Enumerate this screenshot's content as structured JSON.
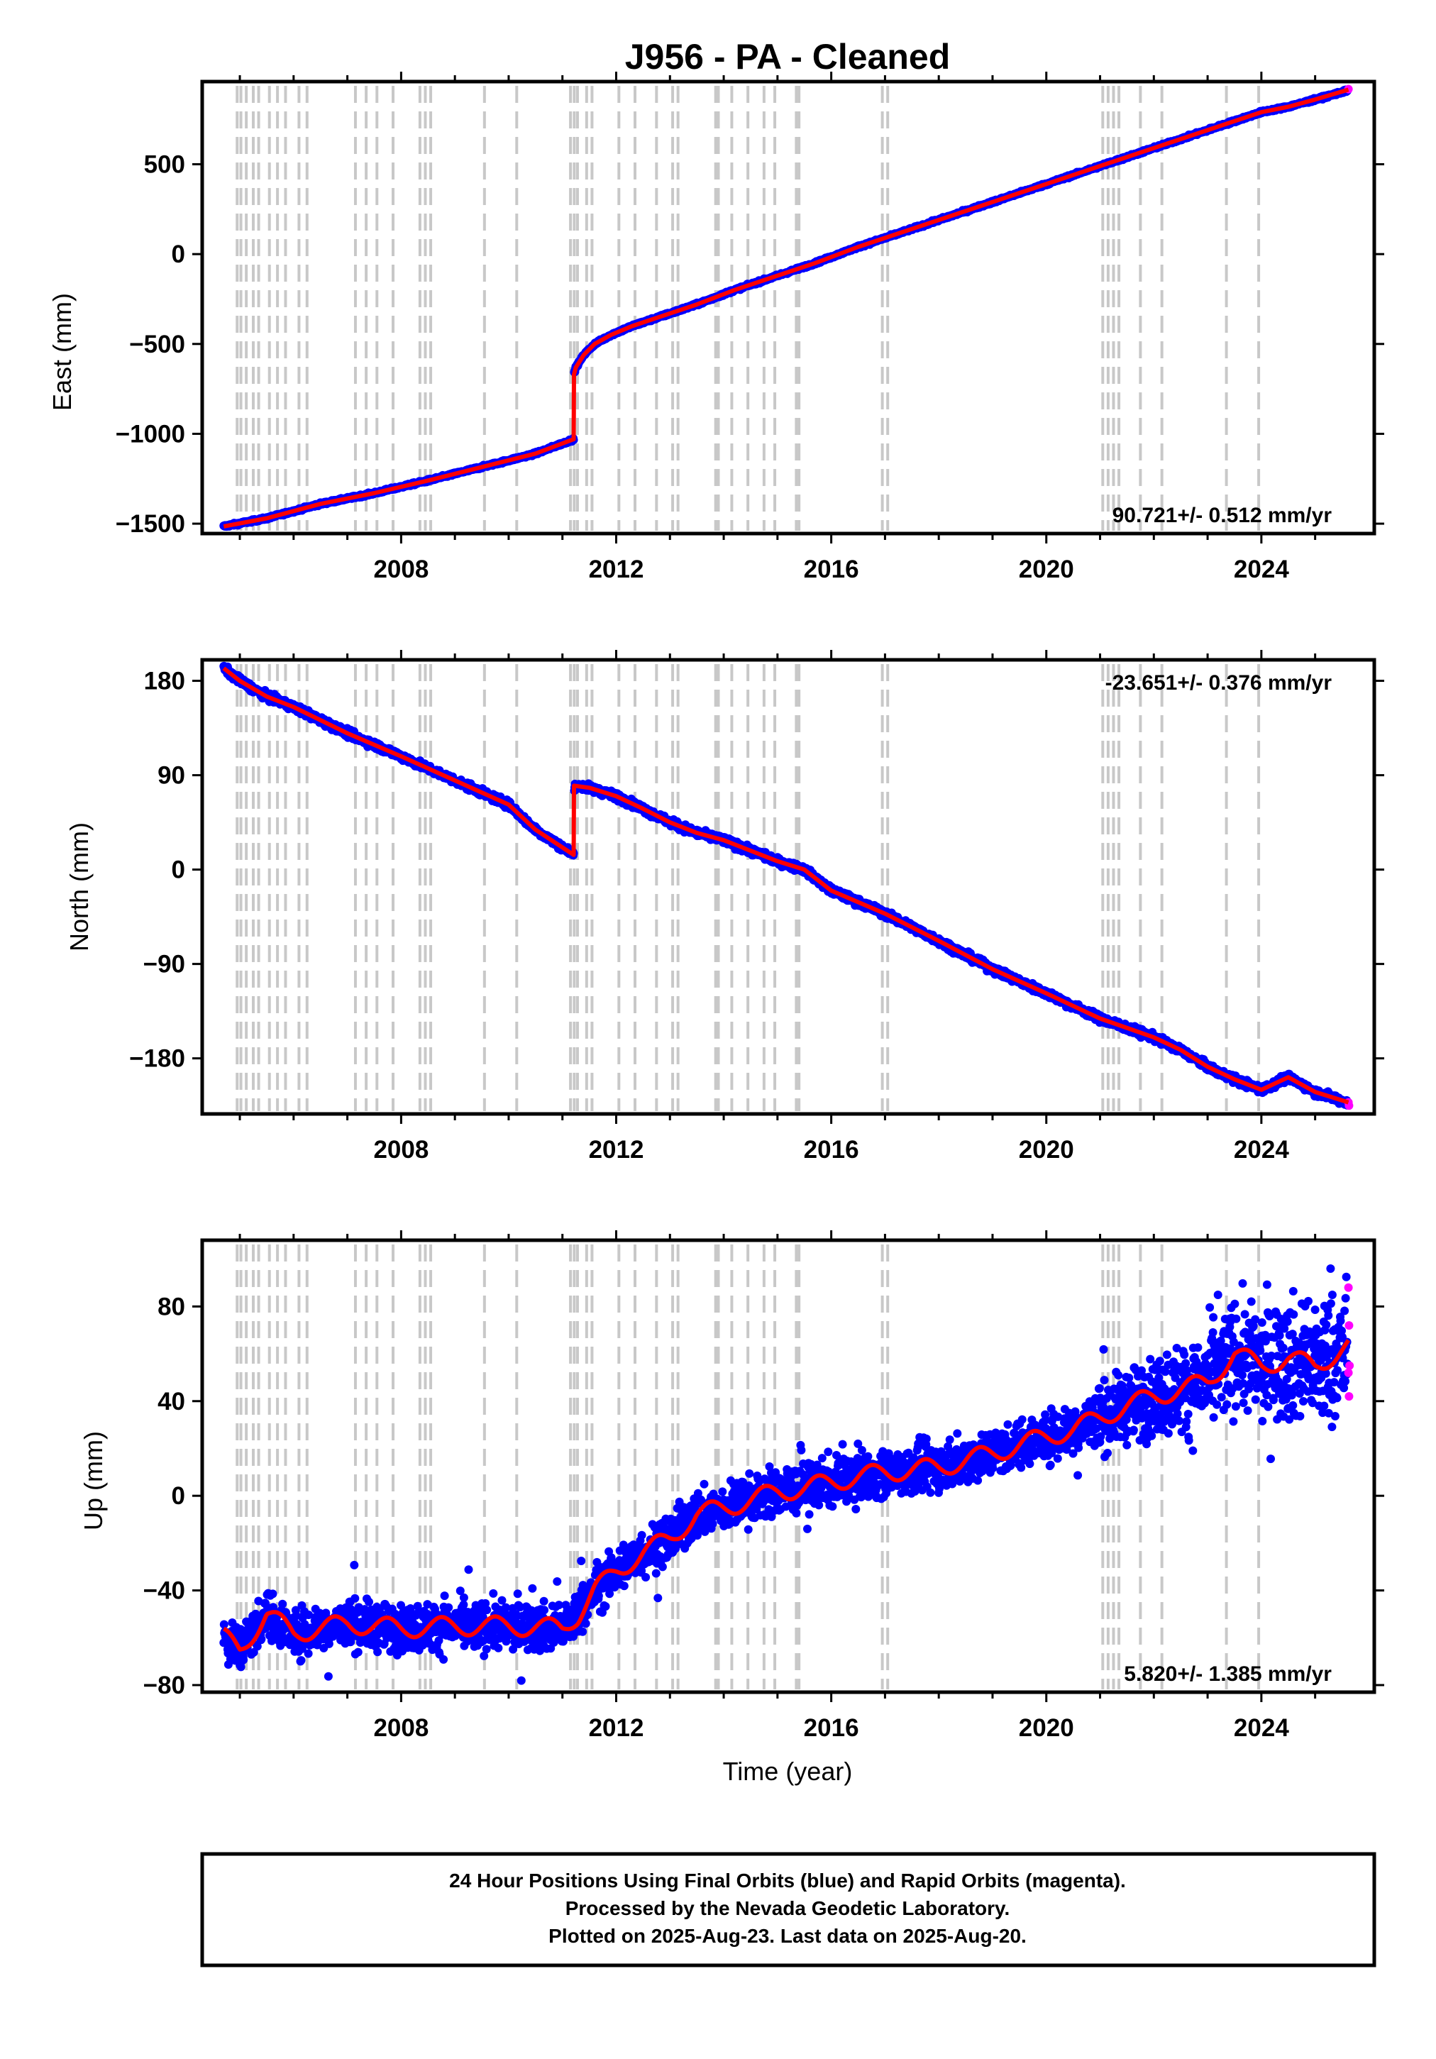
{
  "title": "J956  - PA - Cleaned",
  "chart_data": [
    {
      "type": "scatter",
      "panel": "east",
      "ylabel": "East (mm)",
      "xlim": [
        2004.3,
        2026.1
      ],
      "ylim": [
        -1555,
        960
      ],
      "yticks": [
        500,
        0,
        -500,
        -1000,
        -1500
      ],
      "ytick_labels": [
        "500",
        "0",
        "−500",
        "−1000",
        "−1500"
      ],
      "xticks": [
        2008,
        2012,
        2016,
        2020,
        2024
      ],
      "xtick_labels": [
        "2008",
        "2012",
        "2016",
        "2020",
        "2024"
      ],
      "rate_label": "90.721+/- 0.512 mm/yr",
      "rate_position": "bottom-right",
      "grid": false,
      "scatter_noise": 5,
      "series": [
        {
          "color": "#0000ff",
          "marker": "dot",
          "x": [
            2004.7,
            2005.5,
            2006.5,
            2007.5,
            2008.5,
            2009.5,
            2010.5,
            2011.21
          ],
          "values": [
            -1515,
            -1470,
            -1390,
            -1330,
            -1260,
            -1185,
            -1110,
            -1030
          ]
        },
        {
          "color": "#0000ff",
          "marker": "dot",
          "x": [
            2011.22,
            2011.25,
            2011.4,
            2011.6,
            2011.9,
            2012.3,
            2012.8,
            2013.5,
            2014.2,
            2015.0,
            2015.7,
            2016.5,
            2017.5,
            2018.5,
            2019.5,
            2020.5,
            2021.0,
            2021.5,
            2022.0,
            2022.5,
            2023.0,
            2023.5,
            2024.0,
            2024.5,
            2025.0,
            2025.6
          ],
          "values": [
            -660,
            -630,
            -560,
            -500,
            -450,
            -400,
            -350,
            -280,
            -200,
            -120,
            -50,
            40,
            140,
            240,
            340,
            440,
            490,
            540,
            590,
            640,
            690,
            740,
            790,
            820,
            860,
            910
          ]
        },
        {
          "color": "#ff00ff",
          "marker": "dot",
          "x": [
            2025.62
          ],
          "values": [
            918
          ]
        }
      ],
      "model": {
        "color": "#ff0000",
        "x": [
          2004.7,
          2005.5,
          2006.5,
          2007.5,
          2008.5,
          2009.5,
          2010.5,
          2011.21,
          2011.215,
          2011.25,
          2011.4,
          2011.6,
          2011.9,
          2012.3,
          2012.8,
          2013.5,
          2014.2,
          2015.0,
          2015.7,
          2016.5,
          2017.5,
          2018.5,
          2019.5,
          2020.5,
          2021.0,
          2021.5,
          2022.0,
          2022.5,
          2023.0,
          2023.5,
          2024.0,
          2024.5,
          2025.0,
          2025.62
        ],
        "values": [
          -1515,
          -1470,
          -1390,
          -1330,
          -1260,
          -1185,
          -1110,
          -1030,
          -670,
          -630,
          -560,
          -500,
          -450,
          -400,
          -350,
          -280,
          -200,
          -120,
          -50,
          40,
          140,
          240,
          340,
          440,
          490,
          540,
          590,
          640,
          690,
          740,
          790,
          820,
          860,
          915
        ]
      }
    },
    {
      "type": "scatter",
      "panel": "north",
      "ylabel": "North (mm)",
      "xlim": [
        2004.3,
        2026.1
      ],
      "ylim": [
        -233,
        200
      ],
      "yticks": [
        180,
        90,
        0,
        -90,
        -180
      ],
      "ytick_labels": [
        "180",
        "90",
        "0",
        "−90",
        "−180"
      ],
      "xticks": [
        2008,
        2012,
        2016,
        2020,
        2024
      ],
      "xtick_labels": [
        "2008",
        "2012",
        "2016",
        "2020",
        "2024"
      ],
      "rate_label": "-23.651+/- 0.376 mm/yr",
      "rate_position": "top-right",
      "grid": false,
      "scatter_noise": 2.5,
      "series": [
        {
          "color": "#0000ff",
          "marker": "dot",
          "x": [
            2004.7,
            2005.0,
            2005.5,
            2006.0,
            2007.0,
            2008.0,
            2009.0,
            2010.0,
            2010.5,
            2011.21
          ],
          "values": [
            192,
            180,
            165,
            155,
            130,
            108,
            85,
            62,
            38,
            14
          ]
        },
        {
          "color": "#0000ff",
          "marker": "dot",
          "x": [
            2011.22,
            2011.5,
            2012.0,
            2012.5,
            2013.0,
            2013.5,
            2014.0,
            2014.5,
            2015.0,
            2015.5,
            2016.0,
            2017.0,
            2018.0,
            2019.0,
            2020.0,
            2020.5,
            2021.0,
            2022.0,
            2022.5,
            2023.0,
            2023.5,
            2024.0,
            2024.5,
            2025.0,
            2025.6
          ],
          "values": [
            80,
            78,
            70,
            58,
            45,
            35,
            28,
            18,
            8,
            0,
            -20,
            -42,
            -68,
            -95,
            -118,
            -130,
            -142,
            -160,
            -172,
            -188,
            -200,
            -210,
            -198,
            -212,
            -222
          ]
        },
        {
          "color": "#ff00ff",
          "marker": "dot",
          "x": [
            2025.62,
            2025.63
          ],
          "values": [
            -222,
            -225
          ]
        }
      ],
      "model": {
        "color": "#ff0000",
        "x": [
          2004.7,
          2005.0,
          2005.5,
          2006.0,
          2007.0,
          2008.0,
          2009.0,
          2010.0,
          2010.5,
          2011.21,
          2011.215,
          2011.5,
          2012.0,
          2012.5,
          2013.0,
          2013.5,
          2014.0,
          2014.5,
          2015.0,
          2015.5,
          2016.0,
          2017.0,
          2018.0,
          2019.0,
          2020.0,
          2020.5,
          2021.0,
          2022.0,
          2022.5,
          2023.0,
          2023.5,
          2024.0,
          2024.5,
          2025.0,
          2025.62
        ],
        "values": [
          192,
          180,
          165,
          155,
          130,
          108,
          85,
          62,
          38,
          14,
          80,
          78,
          70,
          58,
          45,
          35,
          28,
          18,
          8,
          0,
          -20,
          -42,
          -68,
          -95,
          -118,
          -130,
          -142,
          -160,
          -172,
          -188,
          -200,
          -210,
          -198,
          -212,
          -222
        ]
      }
    },
    {
      "type": "scatter",
      "panel": "up",
      "ylabel": "Up (mm)",
      "xlabel": "Time (year)",
      "xlim": [
        2004.3,
        2026.1
      ],
      "ylim": [
        -83,
        108
      ],
      "yticks": [
        80,
        40,
        0,
        -40,
        -80
      ],
      "ytick_labels": [
        "80",
        "40",
        "0",
        "−40",
        "−80"
      ],
      "xticks": [
        2008,
        2012,
        2016,
        2020,
        2024
      ],
      "xtick_labels": [
        "2008",
        "2012",
        "2016",
        "2020",
        "2024"
      ],
      "rate_label": "5.820+/- 1.385 mm/yr",
      "rate_position": "bottom-right",
      "grid": false,
      "scatter_noise": 7,
      "series": [
        {
          "color": "#0000ff",
          "marker": "dot",
          "x": [
            2004.7,
            2005.0,
            2005.5,
            2006.0,
            2007.0,
            2008.0,
            2009.0,
            2010.0,
            2011.0,
            2011.3,
            2011.6,
            2012.0,
            2012.5,
            2013.0,
            2013.5,
            2014.0,
            2014.5,
            2015.0,
            2015.5,
            2016.0,
            2017.0,
            2018.0,
            2019.0,
            2020.0,
            2020.5,
            2021.0,
            2021.5,
            2022.0,
            2022.5,
            2023.0,
            2023.5,
            2024.0,
            2024.5,
            2025.0,
            2025.6
          ],
          "values": [
            -60,
            -65,
            -50,
            -58,
            -54,
            -56,
            -55,
            -55,
            -56,
            -50,
            -40,
            -32,
            -24,
            -18,
            -8,
            -5,
            -2,
            2,
            3,
            6,
            10,
            12,
            18,
            25,
            28,
            33,
            38,
            42,
            45,
            48,
            60,
            55,
            58,
            55,
            60
          ]
        },
        {
          "color": "#ff00ff",
          "marker": "dot",
          "x": [
            2025.62,
            2025.63,
            2025.64,
            2025.62,
            2025.63
          ],
          "values": [
            88,
            72,
            55,
            52,
            42
          ]
        }
      ],
      "model": {
        "color": "#ff0000",
        "x": [
          2004.7,
          2005.0,
          2005.5,
          2006.0,
          2007.0,
          2008.0,
          2009.0,
          2010.0,
          2011.0,
          2011.3,
          2011.6,
          2012.0,
          2012.5,
          2013.0,
          2013.5,
          2014.0,
          2014.5,
          2015.0,
          2015.5,
          2016.0,
          2017.0,
          2018.0,
          2019.0,
          2020.0,
          2020.5,
          2021.0,
          2021.5,
          2022.0,
          2022.5,
          2023.0,
          2023.5,
          2024.0,
          2024.5,
          2025.0,
          2025.62
        ],
        "values": [
          -60,
          -65,
          -50,
          -58,
          -54,
          -56,
          -55,
          -55,
          -56,
          -50,
          -40,
          -32,
          -24,
          -18,
          -8,
          -5,
          -2,
          2,
          3,
          6,
          10,
          12,
          18,
          25,
          28,
          33,
          38,
          42,
          45,
          48,
          60,
          55,
          58,
          55,
          63
        ],
        "seasonal_amplitude": 4
      }
    }
  ],
  "event_lines": {
    "color": "#c8c8c8",
    "style": "dashed",
    "x": [
      2004.95,
      2005.02,
      2005.12,
      2005.25,
      2005.35,
      2005.55,
      2005.7,
      2005.85,
      2006.1,
      2006.25,
      2007.15,
      2007.35,
      2007.55,
      2007.85,
      2008.35,
      2008.45,
      2008.55,
      2009.55,
      2010.15,
      2011.15,
      2011.22,
      2011.28,
      2011.45,
      2011.55,
      2012.05,
      2012.35,
      2012.75,
      2013.05,
      2013.15,
      2013.85,
      2013.9,
      2014.15,
      2014.45,
      2014.75,
      2014.95,
      2015.35,
      2015.4,
      2016.95,
      2017.05,
      2021.05,
      2021.15,
      2021.25,
      2021.35,
      2021.75,
      2022.15,
      2023.35,
      2023.95
    ]
  },
  "footer": {
    "line1": "24 Hour Positions Using Final Orbits (blue) and Rapid Orbits (magenta).",
    "line2": "Processed by the Nevada Geodetic Laboratory.",
    "line3": "Plotted on 2025-Aug-23. Last data on 2025-Aug-20."
  }
}
